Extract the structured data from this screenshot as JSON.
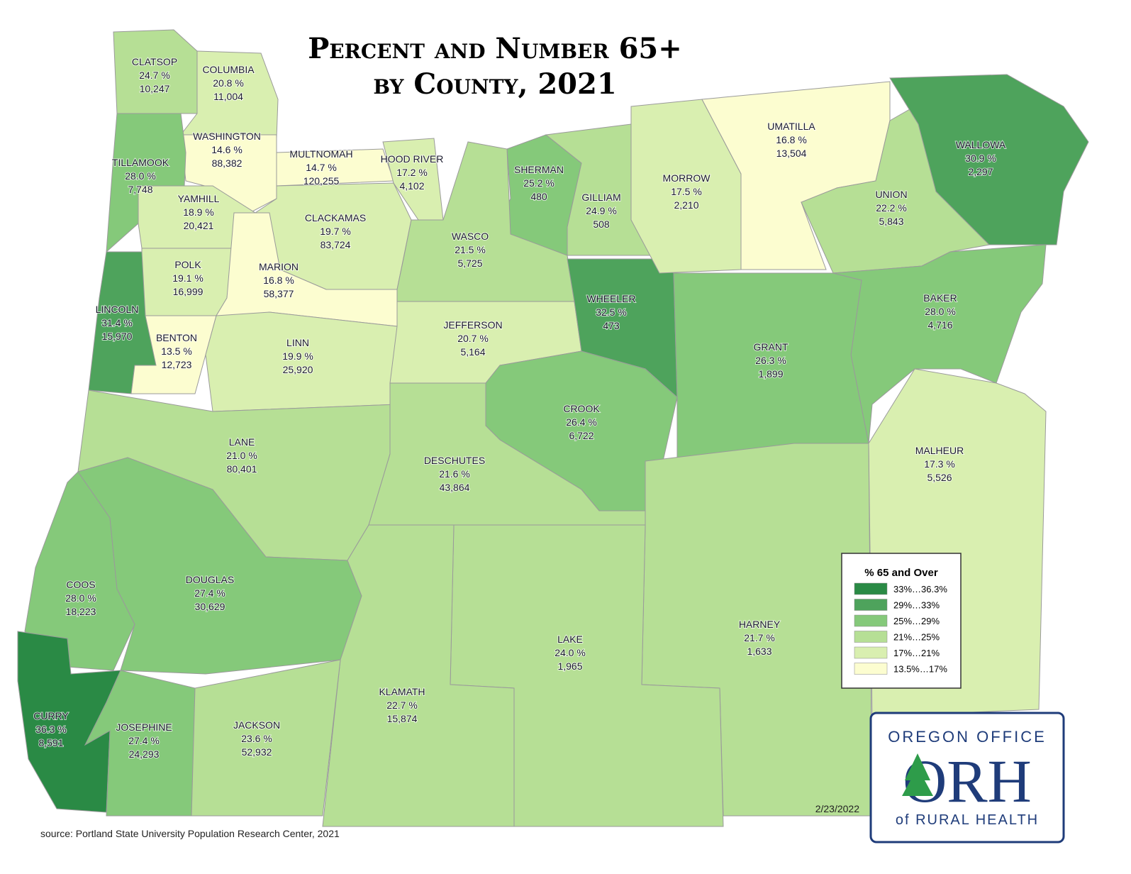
{
  "title": [
    "Percent and Number 65+",
    "by County, 2021"
  ],
  "counties": [
    {
      "name": "CLATSOP",
      "percent": "24.7 %",
      "count": "10,247",
      "color": "#b6df95"
    },
    {
      "name": "COLUMBIA",
      "percent": "20.8 %",
      "count": "11,004",
      "color": "#d9efb0"
    },
    {
      "name": "WASHINGTON",
      "percent": "14.6 %",
      "count": "88,382",
      "color": "#fcfdd0"
    },
    {
      "name": "MULTNOMAH",
      "percent": "14.7 %",
      "count": "120,255",
      "color": "#fcfdd0"
    },
    {
      "name": "TILLAMOOK",
      "percent": "28.0 %",
      "count": "7,748",
      "color": "#85c97a"
    },
    {
      "name": "HOOD RIVER",
      "percent": "17.2 %",
      "count": "4,102",
      "color": "#d9efb0"
    },
    {
      "name": "SHERMAN",
      "percent": "25.2 %",
      "count": "480",
      "color": "#85c97a"
    },
    {
      "name": "YAMHILL",
      "percent": "18.9 %",
      "count": "20,421",
      "color": "#d9efb0"
    },
    {
      "name": "CLACKAMAS",
      "percent": "19.7 %",
      "count": "83,724",
      "color": "#d9efb0"
    },
    {
      "name": "WASCO",
      "percent": "21.5 %",
      "count": "5,725",
      "color": "#b6df95"
    },
    {
      "name": "POLK",
      "percent": "19.1 %",
      "count": "16,999",
      "color": "#d9efb0"
    },
    {
      "name": "MARION",
      "percent": "16.8 %",
      "count": "58,377",
      "color": "#fcfdd0"
    },
    {
      "name": "LINCOLN",
      "percent": "31.4 %",
      "count": "15,970",
      "color": "#4ea35c"
    },
    {
      "name": "BENTON",
      "percent": "13.5 %",
      "count": "12,723",
      "color": "#fcfdd0"
    },
    {
      "name": "LINN",
      "percent": "19.9 %",
      "count": "25,920",
      "color": "#d9efb0"
    },
    {
      "name": "JEFFERSON",
      "percent": "20.7 %",
      "count": "5,164",
      "color": "#d9efb0"
    },
    {
      "name": "WHEELER",
      "percent": "32.5 %",
      "count": "473",
      "color": "#4ea35c"
    },
    {
      "name": "GILLIAM",
      "percent": "24.9 %",
      "count": "508",
      "color": "#b6df95"
    },
    {
      "name": "MORROW",
      "percent": "17.5 %",
      "count": "2,210",
      "color": "#d9efb0"
    },
    {
      "name": "UMATILLA",
      "percent": "16.8 %",
      "count": "13,504",
      "color": "#fcfdd0"
    },
    {
      "name": "UNION",
      "percent": "22.2 %",
      "count": "5,843",
      "color": "#b6df95"
    },
    {
      "name": "WALLOWA",
      "percent": "30.9 %",
      "count": "2,297",
      "color": "#4ea35c"
    },
    {
      "name": "BAKER",
      "percent": "28.0 %",
      "count": "4,716",
      "color": "#85c97a"
    },
    {
      "name": "GRANT",
      "percent": "26.3 %",
      "count": "1,899",
      "color": "#85c97a"
    },
    {
      "name": "CROOK",
      "percent": "26.4 %",
      "count": "6,722",
      "color": "#85c97a"
    },
    {
      "name": "LANE",
      "percent": "21.0 %",
      "count": "80,401",
      "color": "#b6df95"
    },
    {
      "name": "DESCHUTES",
      "percent": "21.6 %",
      "count": "43,864",
      "color": "#b6df95"
    },
    {
      "name": "MALHEUR",
      "percent": "17.3 %",
      "count": "5,526",
      "color": "#d9efb0"
    },
    {
      "name": "COOS",
      "percent": "28.0 %",
      "count": "18,223",
      "color": "#85c97a"
    },
    {
      "name": "DOUGLAS",
      "percent": "27.4 %",
      "count": "30,629",
      "color": "#85c97a"
    },
    {
      "name": "HARNEY",
      "percent": "21.7 %",
      "count": "1,633",
      "color": "#b6df95"
    },
    {
      "name": "LAKE",
      "percent": "24.0 %",
      "count": "1,965",
      "color": "#b6df95"
    },
    {
      "name": "KLAMATH",
      "percent": "22.7 %",
      "count": "15,874",
      "color": "#b6df95"
    },
    {
      "name": "CURRY",
      "percent": "36.3 %",
      "count": "8,591",
      "color": "#2a8a45"
    },
    {
      "name": "JOSEPHINE",
      "percent": "27.4 %",
      "count": "24,293",
      "color": "#85c97a"
    },
    {
      "name": "JACKSON",
      "percent": "23.6 %",
      "count": "52,932",
      "color": "#b6df95"
    }
  ],
  "legend": {
    "title": "% 65 and Over",
    "items": [
      {
        "label": "33%…36.3%",
        "color": "#2a8a45"
      },
      {
        "label": "29%…33%",
        "color": "#4ea35c"
      },
      {
        "label": "25%…29%",
        "color": "#85c97a"
      },
      {
        "label": "21%…25%",
        "color": "#b6df95"
      },
      {
        "label": "17%…21%",
        "color": "#d9efb0"
      },
      {
        "label": "13.5%…17%",
        "color": "#fcfdd0"
      }
    ]
  },
  "date": "2/23/2022",
  "source": "source: Portland State University Population Research Center, 2021",
  "logo": {
    "top": "OREGON OFFICE",
    "mark": "ORH",
    "bottom": "of RURAL HEALTH"
  }
}
